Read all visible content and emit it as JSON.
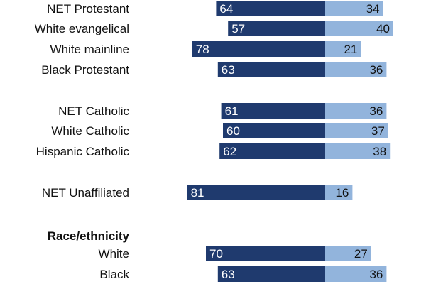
{
  "chart_data": {
    "type": "bar",
    "orientation": "horizontal-diverging",
    "colors": {
      "left": "#1f3a6e",
      "right": "#92b4dc"
    },
    "rows": [
      {
        "label": "NET Protestant",
        "left": 64,
        "right": 34
      },
      {
        "label": "White evangelical",
        "left": 57,
        "right": 40
      },
      {
        "label": "White mainline",
        "left": 78,
        "right": 21
      },
      {
        "label": "Black Protestant",
        "left": 63,
        "right": 36
      },
      {
        "label": "NET Catholic",
        "left": 61,
        "right": 36
      },
      {
        "label": "White Catholic",
        "left": 60,
        "right": 37
      },
      {
        "label": "Hispanic Catholic",
        "left": 62,
        "right": 38
      },
      {
        "label": "NET Unaffiliated",
        "left": 81,
        "right": 16
      },
      {
        "label": "White",
        "left": 70,
        "right": 27
      },
      {
        "label": "Black",
        "left": 63,
        "right": 36
      }
    ],
    "section_headers": [
      {
        "label": "Race/ethnicity"
      }
    ]
  }
}
